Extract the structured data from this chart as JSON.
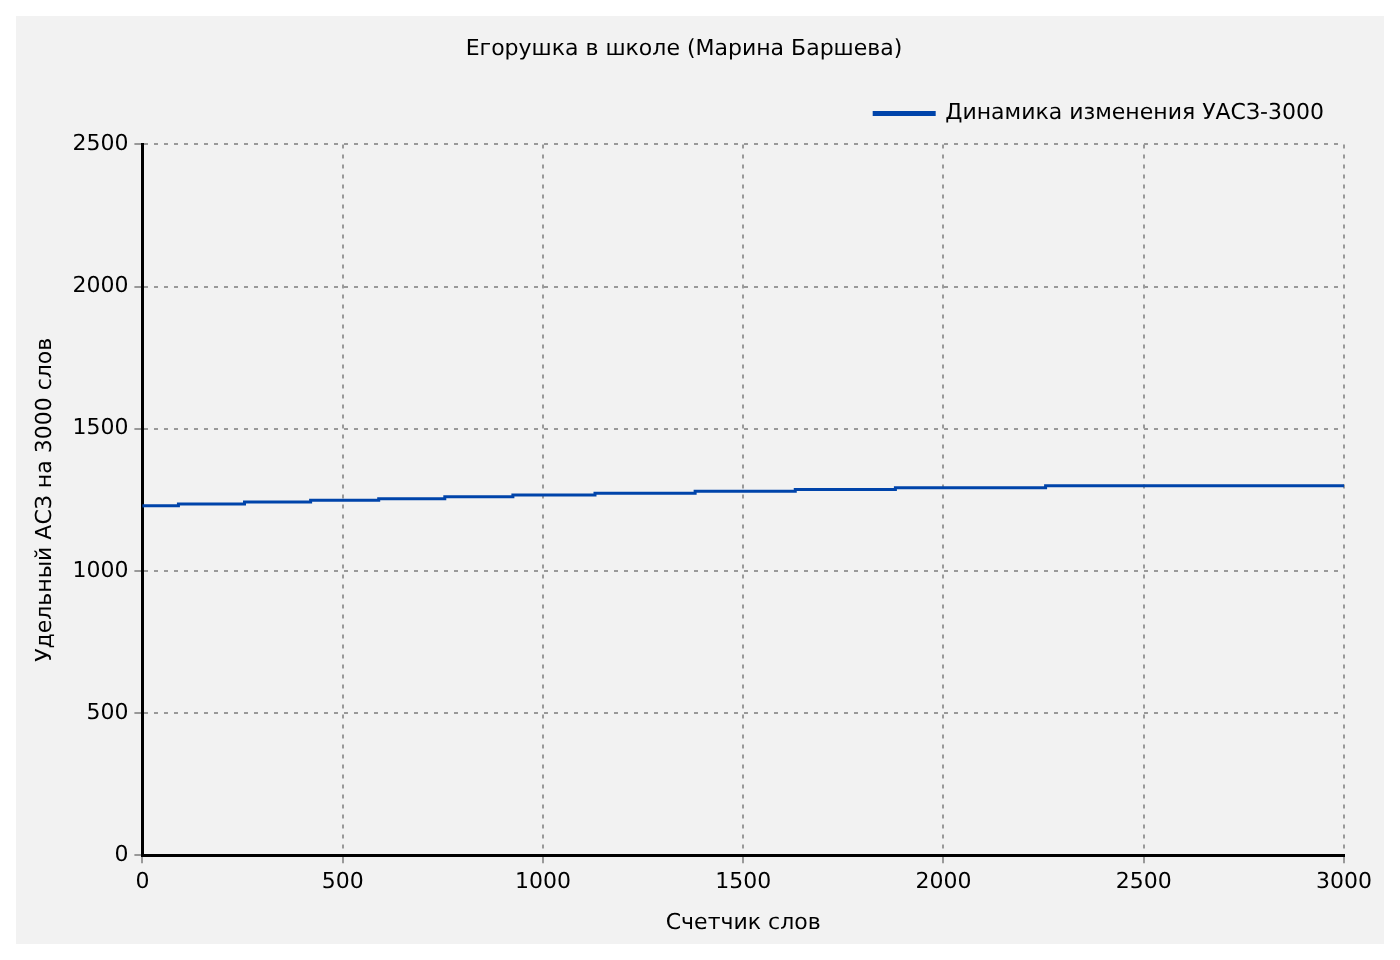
{
  "chart_data": {
    "type": "step",
    "title": "Егорушка в школе (Марина Баршева)",
    "xlabel": "Счетчик слов",
    "ylabel": "Удельный АСЗ на 3000 слов",
    "series": [
      {
        "name": "Динамика изменения УАСЗ-3000",
        "color": "#0044aa",
        "x": [
          0,
          90,
          255,
          420,
          590,
          755,
          925,
          1130,
          1380,
          1630,
          1880,
          2255,
          2755,
          3000
        ],
        "values": [
          1223,
          1229,
          1235,
          1242,
          1248,
          1254,
          1261,
          1267,
          1273,
          1280,
          1286,
          1292,
          1299,
          1299
        ]
      }
    ],
    "xlim": [
      0,
      3000
    ],
    "xticks": [
      0,
      500,
      1000,
      1500,
      2000,
      2500,
      3000
    ],
    "ylim": [
      0,
      2500
    ],
    "yticks": [
      0,
      500,
      1000,
      1500,
      2000,
      2500
    ],
    "grid": true,
    "legend": "top right",
    "line_style": "solid",
    "marker": "none"
  }
}
